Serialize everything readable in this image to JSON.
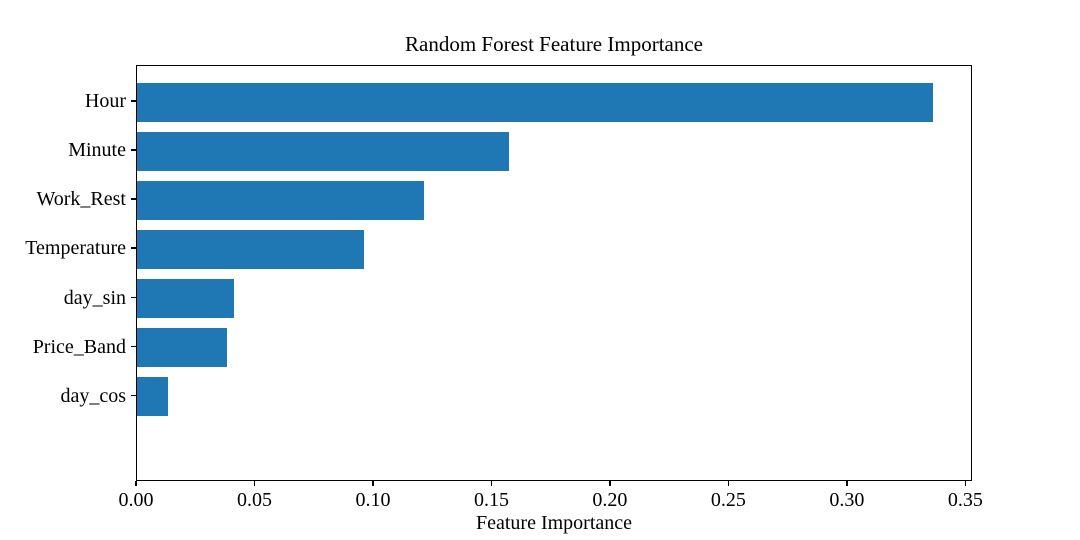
{
  "chart_data": {
    "type": "bar",
    "orientation": "horizontal",
    "title": "Random Forest Feature Importance",
    "xlabel": "Feature Importance",
    "ylabel": "",
    "categories": [
      "Hour",
      "Minute",
      "Work_Rest",
      "Temperature",
      "day_sin",
      "Price_Band",
      "day_cos"
    ],
    "values": [
      0.336,
      0.157,
      0.121,
      0.096,
      0.041,
      0.038,
      0.013
    ],
    "xlim": [
      0,
      0.3528
    ],
    "xticks": [
      0.0,
      0.05,
      0.1,
      0.15,
      0.2,
      0.25,
      0.3,
      0.35
    ],
    "xtick_labels": [
      "0.00",
      "0.05",
      "0.10",
      "0.15",
      "0.20",
      "0.25",
      "0.30",
      "0.35"
    ],
    "bar_color": "#1f77b4",
    "grid": false,
    "legend": null,
    "background_color": "#ffffff"
  }
}
